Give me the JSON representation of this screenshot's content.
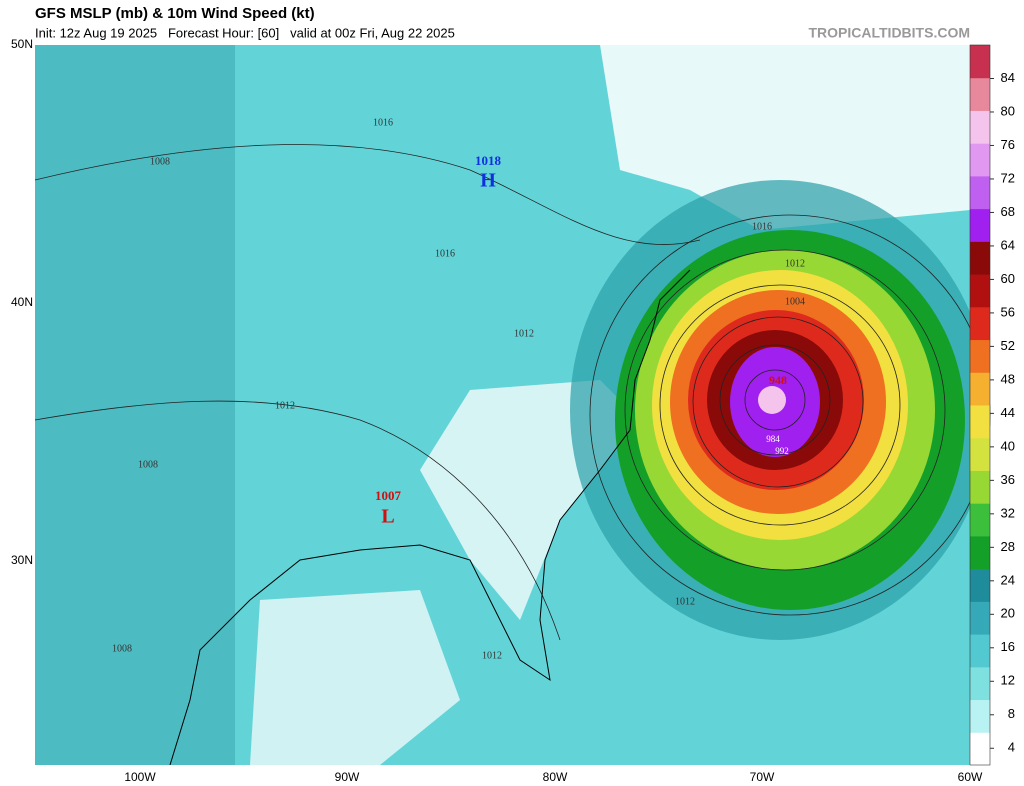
{
  "header": {
    "title": "GFS MSLP (mb) & 10m Wind Speed (kt)",
    "subtitle": "Init: 12z Aug 19 2025   Forecast Hour: [60]   valid at 00z Fri, Aug 22 2025",
    "watermark": "TROPICALTIDBITS.COM"
  },
  "map": {
    "lat_labels": [
      "50N",
      "40N",
      "30N"
    ],
    "lon_labels": [
      "100W",
      "90W",
      "80W",
      "70W",
      "60W"
    ],
    "pressure_labels": [
      "1016",
      "1008",
      "1018",
      "H",
      "1016",
      "1016",
      "1012",
      "1004",
      "1012",
      "1012",
      "1008",
      "1007",
      "L",
      "948",
      "984",
      "992",
      "1012",
      "1008",
      "1012"
    ]
  },
  "colorbar": {
    "scale_range": [
      2,
      88
    ],
    "ticks": [
      4,
      8,
      12,
      16,
      20,
      24,
      28,
      32,
      36,
      40,
      44,
      48,
      52,
      56,
      60,
      64,
      68,
      72,
      76,
      80,
      84
    ],
    "colors": [
      "#ffffff",
      "#b8f2f2",
      "#7fe0e0",
      "#52c8d0",
      "#35a9b8",
      "#1f8c9c",
      "#14a028",
      "#3cc03c",
      "#98d834",
      "#d4e240",
      "#f2e040",
      "#f6b030",
      "#ee7020",
      "#de2a1c",
      "#b01010",
      "#8a0a0a",
      "#a020f0",
      "#c060f0",
      "#e098f0",
      "#f4c4ec",
      "#e8889c",
      "#c83050"
    ]
  }
}
